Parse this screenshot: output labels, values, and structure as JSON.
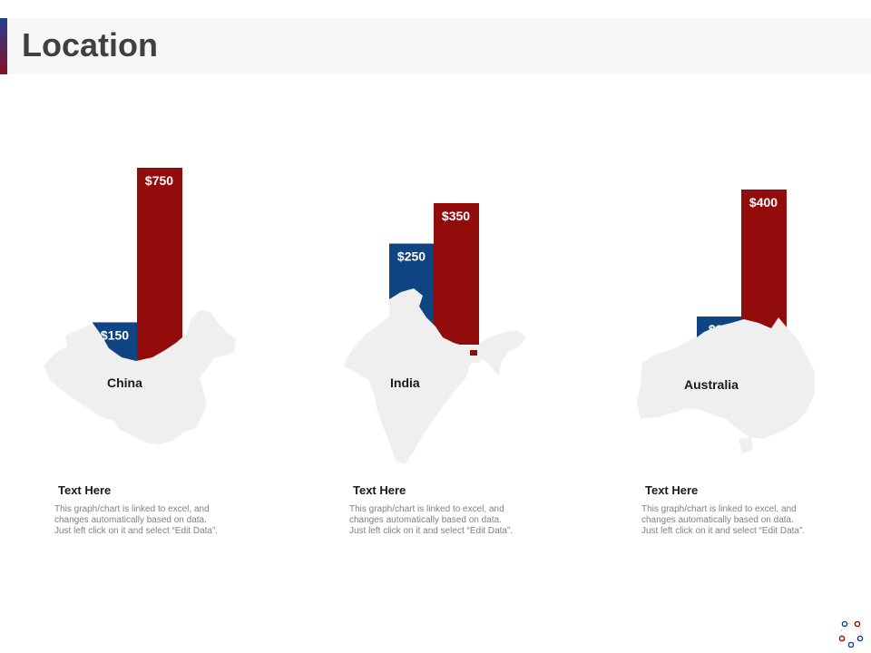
{
  "page": {
    "title": "Location"
  },
  "colors": {
    "blue": "#0f4583",
    "red": "#920c0c",
    "map": "#efefef",
    "accent_top": "#1f3f8f",
    "accent_bottom": "#8b1020"
  },
  "chart_data": [
    {
      "type": "bar",
      "categories": [
        "China"
      ],
      "series": [
        {
          "values": [
            150
          ]
        },
        {
          "values": [
            750
          ]
        }
      ],
      "data_labels": [
        "$150",
        "$750"
      ]
    },
    {
      "type": "bar",
      "categories": [
        "India"
      ],
      "series": [
        {
          "values": [
            250
          ]
        },
        {
          "values": [
            350
          ]
        }
      ],
      "data_labels": [
        "$250",
        "$350"
      ]
    },
    {
      "type": "bar",
      "categories": [
        "Australia"
      ],
      "series": [
        {
          "values": [
            80
          ]
        },
        {
          "values": [
            400
          ]
        }
      ],
      "data_labels": [
        "$80",
        "$400"
      ]
    }
  ],
  "captions": [
    {
      "heading": "Text Here",
      "lines": [
        "This graph/chart is linked to excel, and",
        "changes automatically based on data.",
        "Just left click on it and select “Edit Data”."
      ]
    },
    {
      "heading": "Text Here",
      "lines": [
        "This graph/chart is linked to excel, and",
        "changes automatically based on data.",
        "Just left click on it and select “Edit Data”."
      ]
    },
    {
      "heading": "Text Here",
      "lines": [
        "This graph/chart is linked to excel, and",
        "changes automatically based on data.",
        "Just left click on it and select “Edit Data”."
      ]
    }
  ],
  "icons": {
    "logo": "circle-dots-logo-icon"
  }
}
